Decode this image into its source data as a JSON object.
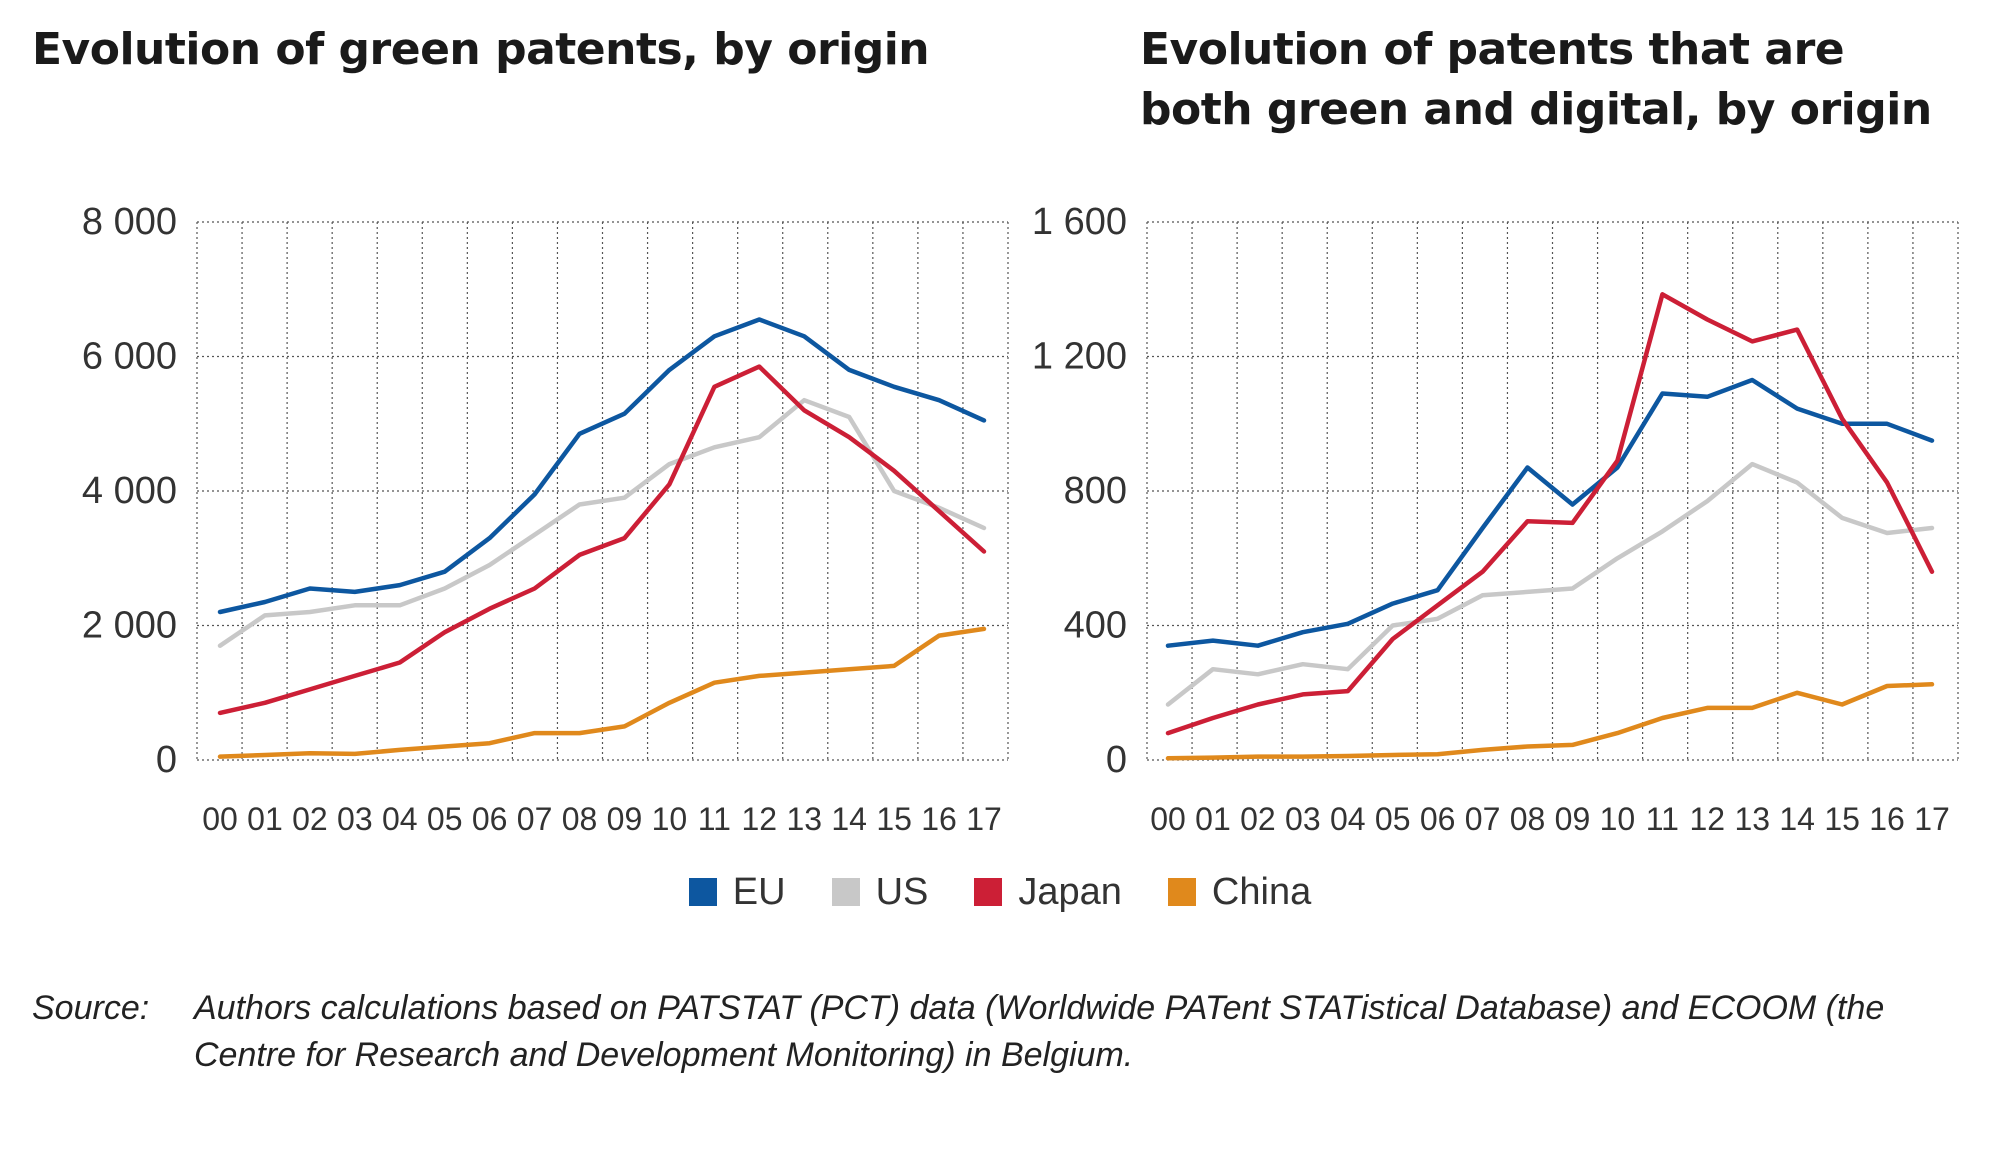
{
  "titles": {
    "left": "Evolution of green patents, by origin",
    "right": "Evolution of patents that are both green and digital, by origin"
  },
  "legend": [
    {
      "label": "EU",
      "color": "#0d57a0"
    },
    {
      "label": "US",
      "color": "#c8c8c8"
    },
    {
      "label": "Japan",
      "color": "#cc1f36"
    },
    {
      "label": "China",
      "color": "#e0891c"
    }
  ],
  "source": {
    "label": "Source:",
    "text": "Authors calculations based on PATSTAT (PCT) data (Worldwide PATent STATistical Database) and ECOOM (the Centre for Research and Development Monitoring) in Belgium."
  },
  "chart_data": [
    {
      "type": "line",
      "title": "Evolution of green patents, by origin",
      "categories": [
        "00",
        "01",
        "02",
        "03",
        "04",
        "05",
        "06",
        "07",
        "08",
        "09",
        "10",
        "11",
        "12",
        "13",
        "14",
        "15",
        "16",
        "17"
      ],
      "ylim": [
        0,
        8000
      ],
      "yticks": [
        0,
        2000,
        4000,
        6000,
        8000
      ],
      "ytick_labels": [
        "0",
        "2 000",
        "4 000",
        "6 000",
        "8 000"
      ],
      "grid": true,
      "series": [
        {
          "name": "EU",
          "color": "#0d57a0",
          "values": [
            2200,
            2350,
            2550,
            2500,
            2600,
            2800,
            3300,
            3950,
            4850,
            5150,
            5800,
            6300,
            6550,
            6300,
            5800,
            5550,
            5350,
            5050
          ]
        },
        {
          "name": "US",
          "color": "#c8c8c8",
          "values": [
            1700,
            2150,
            2200,
            2300,
            2300,
            2550,
            2900,
            3350,
            3800,
            3900,
            4400,
            4650,
            4800,
            5350,
            5100,
            4000,
            3750,
            3450
          ]
        },
        {
          "name": "Japan",
          "color": "#cc1f36",
          "values": [
            700,
            850,
            1050,
            1250,
            1450,
            1900,
            2250,
            2550,
            3050,
            3300,
            4100,
            5550,
            5850,
            5200,
            4800,
            4300,
            3700,
            3100
          ]
        },
        {
          "name": "China",
          "color": "#e0891c",
          "values": [
            50,
            75,
            100,
            90,
            150,
            200,
            250,
            400,
            400,
            500,
            850,
            1150,
            1250,
            1300,
            1350,
            1400,
            1850,
            1950
          ]
        }
      ]
    },
    {
      "type": "line",
      "title": "Evolution of patents that are both green and digital, by origin",
      "categories": [
        "00",
        "01",
        "02",
        "03",
        "04",
        "05",
        "06",
        "07",
        "08",
        "09",
        "10",
        "11",
        "12",
        "13",
        "14",
        "15",
        "16",
        "17"
      ],
      "ylim": [
        0,
        1600
      ],
      "yticks": [
        0,
        400,
        800,
        1200,
        1600
      ],
      "ytick_labels": [
        "0",
        "400",
        "800",
        "1 200",
        "1 600"
      ],
      "grid": true,
      "series": [
        {
          "name": "EU",
          "color": "#0d57a0",
          "values": [
            340,
            355,
            340,
            380,
            405,
            465,
            505,
            690,
            870,
            760,
            870,
            1090,
            1080,
            1130,
            1045,
            1000,
            1000,
            950
          ]
        },
        {
          "name": "US",
          "color": "#c8c8c8",
          "values": [
            165,
            270,
            255,
            285,
            270,
            400,
            420,
            490,
            500,
            510,
            600,
            680,
            770,
            880,
            825,
            720,
            675,
            690
          ]
        },
        {
          "name": "Japan",
          "color": "#cc1f36",
          "values": [
            80,
            125,
            165,
            195,
            205,
            360,
            460,
            560,
            710,
            705,
            890,
            1385,
            1310,
            1245,
            1280,
            1015,
            825,
            560
          ]
        },
        {
          "name": "China",
          "color": "#e0891c",
          "values": [
            5,
            7,
            10,
            10,
            12,
            15,
            17,
            30,
            40,
            45,
            80,
            125,
            155,
            155,
            200,
            165,
            220,
            225
          ]
        }
      ]
    }
  ]
}
